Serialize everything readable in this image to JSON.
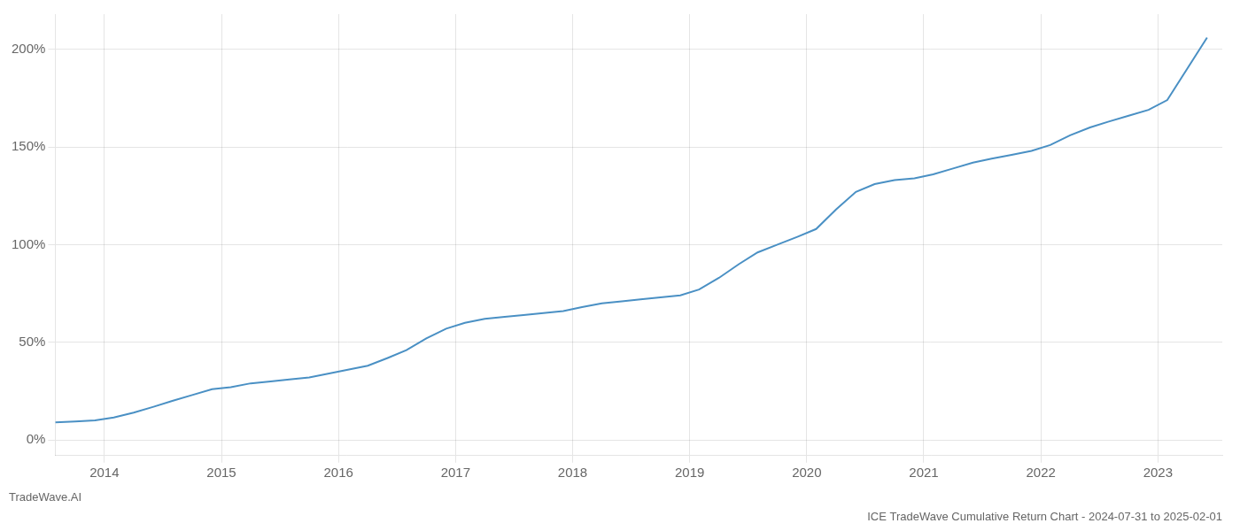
{
  "chart_data": {
    "type": "line",
    "title": "ICE TradeWave Cumulative Return Chart - 2024-07-31 to 2025-02-01",
    "annotations": [
      "TradeWave.AI"
    ],
    "x": [
      2013.58,
      2013.75,
      2013.92,
      2014.08,
      2014.25,
      2014.42,
      2014.58,
      2014.75,
      2014.92,
      2015.08,
      2015.25,
      2015.42,
      2015.58,
      2015.75,
      2015.92,
      2016.08,
      2016.25,
      2016.42,
      2016.58,
      2016.75,
      2016.92,
      2017.08,
      2017.25,
      2017.42,
      2017.58,
      2017.75,
      2017.92,
      2018.08,
      2018.25,
      2018.42,
      2018.58,
      2018.75,
      2018.92,
      2019.08,
      2019.25,
      2019.42,
      2019.58,
      2019.75,
      2019.92,
      2020.08,
      2020.25,
      2020.42,
      2020.58,
      2020.75,
      2020.92,
      2021.08,
      2021.25,
      2021.42,
      2021.58,
      2021.75,
      2021.92,
      2022.08,
      2022.25,
      2022.42,
      2022.58,
      2022.75,
      2022.92,
      2023.08,
      2023.25,
      2023.42
    ],
    "values": [
      9,
      9.5,
      10,
      11.5,
      14,
      17,
      20,
      23,
      26,
      27,
      29,
      30,
      31,
      32,
      34,
      36,
      38,
      42,
      46,
      52,
      57,
      60,
      62,
      63,
      64,
      65,
      66,
      68,
      70,
      71,
      72,
      73,
      74,
      77,
      83,
      90,
      96,
      100,
      104,
      108,
      118,
      127,
      131,
      133,
      134,
      136,
      139,
      142,
      144,
      146,
      148,
      151,
      156,
      160,
      163,
      166,
      169,
      174,
      190,
      206
    ],
    "color": "#4a90c4",
    "xlim": [
      2013.58,
      2023.55
    ],
    "xticks": [
      2014,
      2015,
      2016,
      2017,
      2018,
      2019,
      2020,
      2021,
      2022,
      2023
    ],
    "ylim": [
      -8,
      218
    ],
    "yticks": [
      {
        "value": 0,
        "label": "0%"
      },
      {
        "value": 50,
        "label": "50%"
      },
      {
        "value": 100,
        "label": "100%"
      },
      {
        "value": 150,
        "label": "150%"
      },
      {
        "value": 200,
        "label": "200%"
      }
    ],
    "grid": true
  }
}
